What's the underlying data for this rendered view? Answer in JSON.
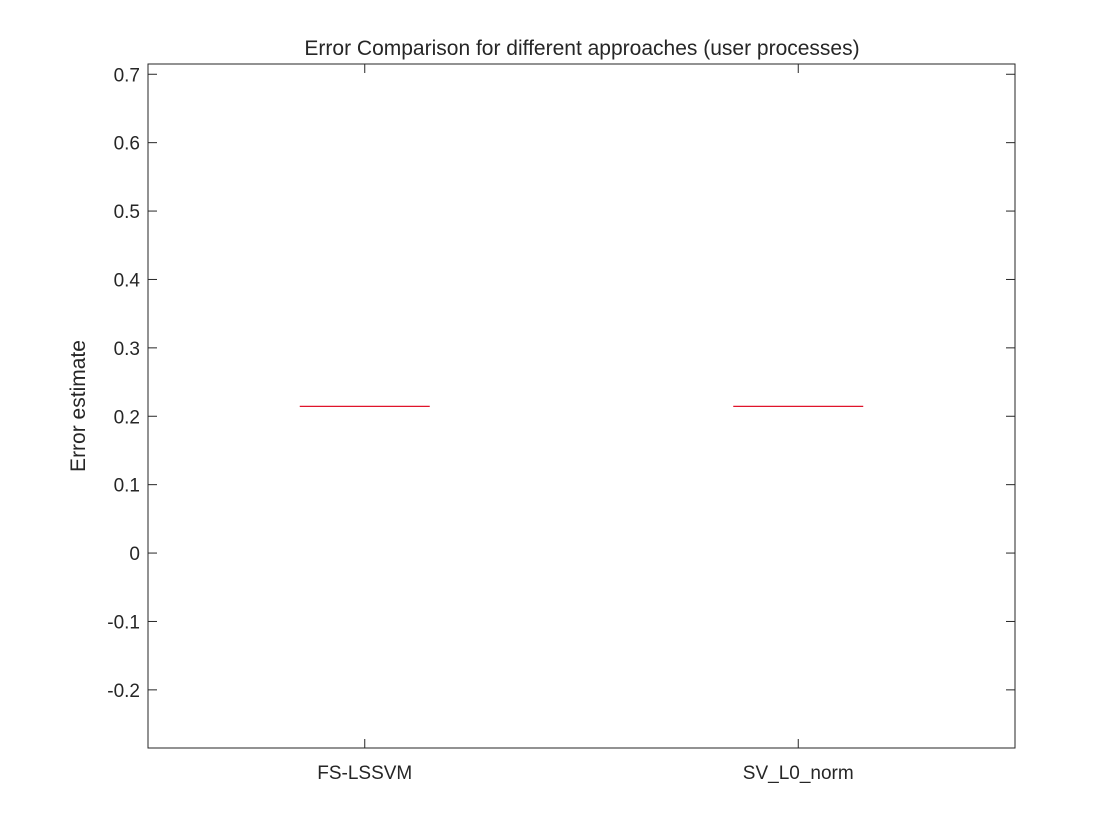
{
  "chart_data": {
    "type": "box",
    "title": "Error Comparison for different approaches (user processes)",
    "xlabel": "",
    "ylabel": "Error estimate",
    "categories": [
      "FS-LSSVM",
      "SV_L0_norm"
    ],
    "medians": [
      0.2144,
      0.2144
    ],
    "ylim": [
      -0.285,
      0.715
    ],
    "yticks": [
      -0.2,
      -0.1,
      0,
      0.1,
      0.2,
      0.3,
      0.4,
      0.5,
      0.6,
      0.7
    ],
    "ytick_labels": [
      "-0.2",
      "-0.1",
      "0",
      "0.1",
      "0.2",
      "0.3",
      "0.4",
      "0.5",
      "0.6",
      "0.7"
    ],
    "grid": false,
    "colors": {
      "median": "#e0142b",
      "axes": "#262626",
      "background": "#ffffff"
    }
  }
}
